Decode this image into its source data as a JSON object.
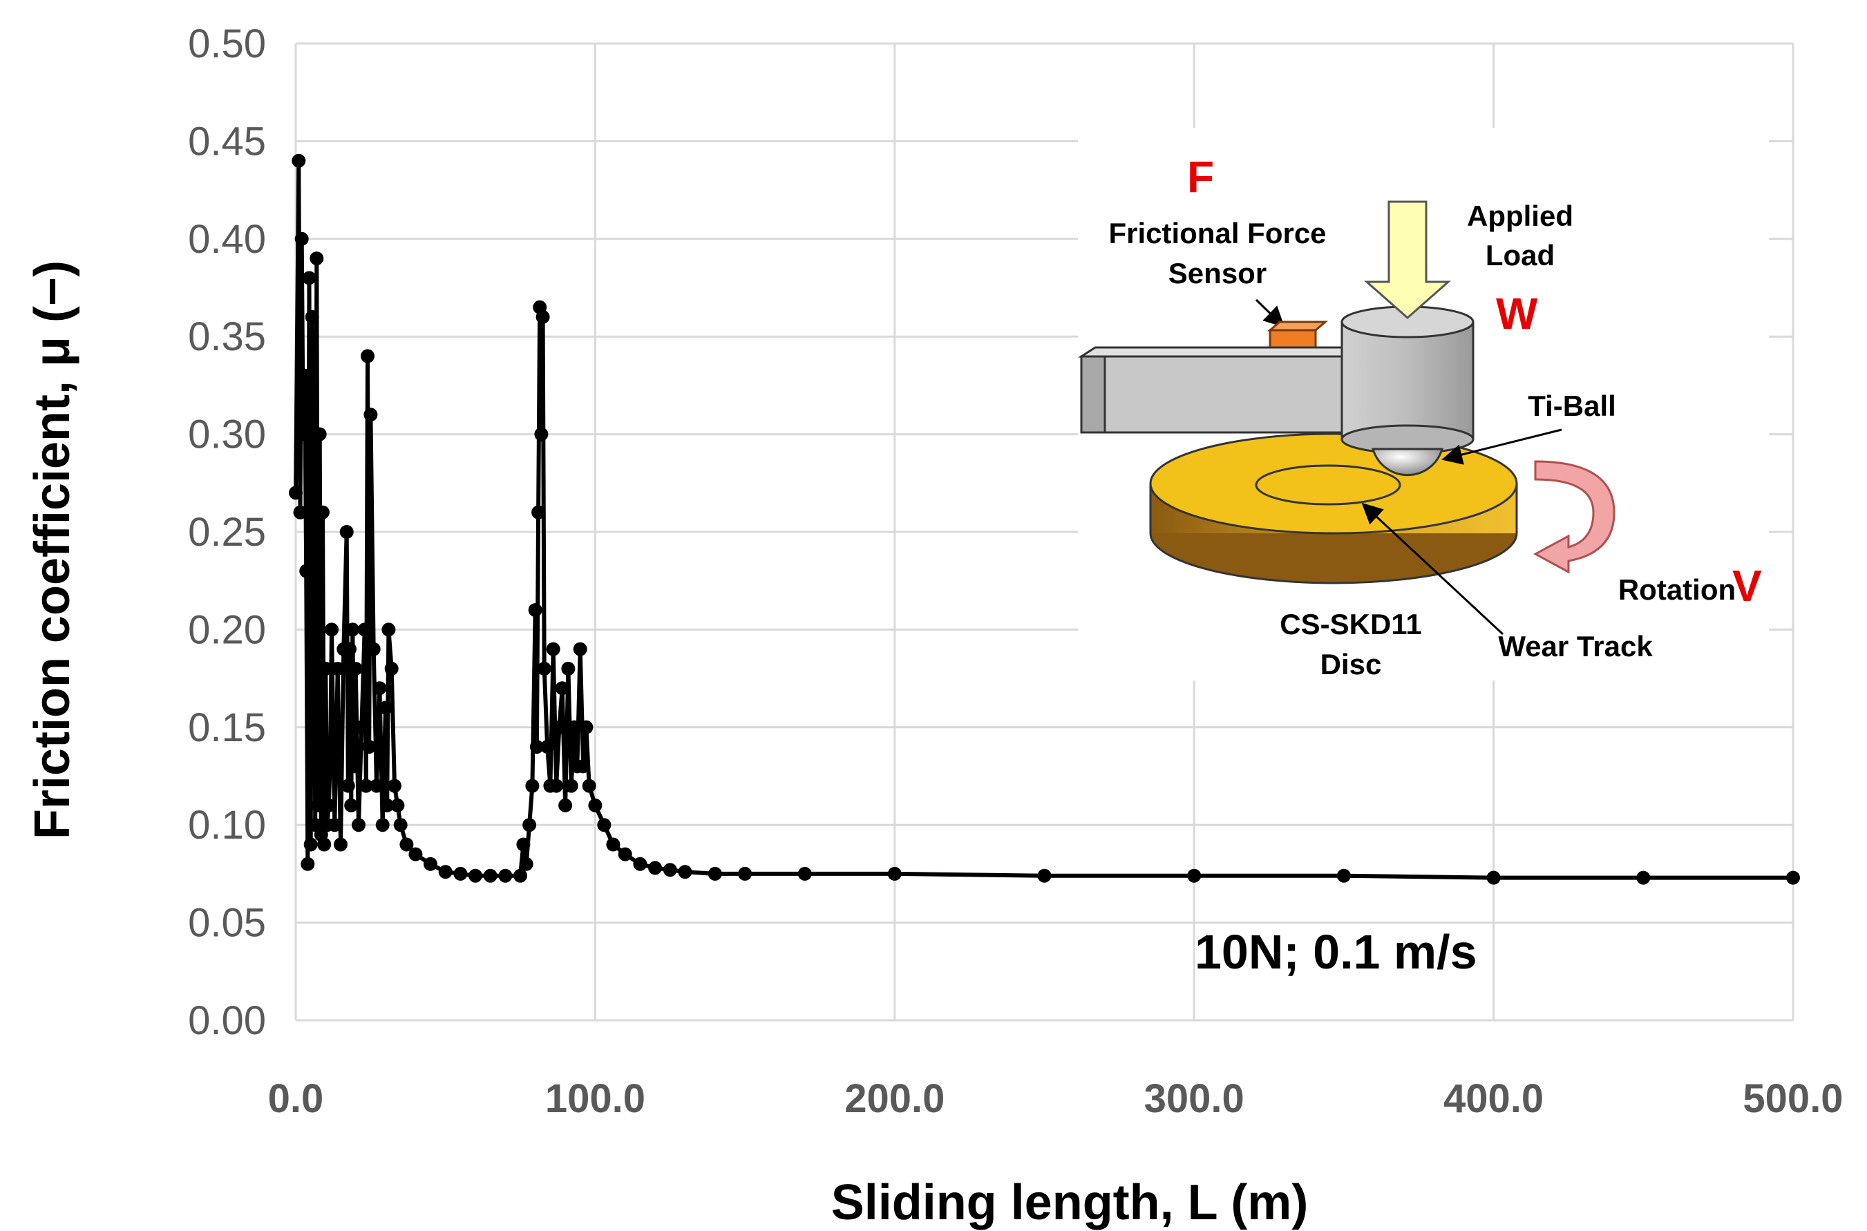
{
  "chart_data": {
    "type": "line",
    "title": "",
    "xlabel": "Sliding length, L (m)",
    "ylabel": "Friction coefficient, μ (−)",
    "xlim": [
      0,
      500
    ],
    "ylim": [
      0,
      0.5
    ],
    "x_ticks": [
      0,
      100,
      200,
      300,
      400,
      500
    ],
    "x_tick_labels": [
      "0.0",
      "100.0",
      "200.0",
      "300.0",
      "400.0",
      "500.0"
    ],
    "y_ticks": [
      0,
      0.05,
      0.1,
      0.15,
      0.2,
      0.25,
      0.3,
      0.35,
      0.4,
      0.45,
      0.5
    ],
    "y_tick_labels": [
      "0.00",
      "0.05",
      "0.10",
      "0.15",
      "0.20",
      "0.25",
      "0.30",
      "0.35",
      "0.40",
      "0.45",
      "0.50"
    ],
    "grid": true,
    "annotation": "10N; 0.1 m/s",
    "series": [
      {
        "name": "Friction coefficient",
        "marker": "circle",
        "color": "#000000",
        "x": [
          0,
          1,
          1.5,
          2,
          2.5,
          3,
          3.5,
          4,
          4.5,
          5,
          5.5,
          6,
          6.5,
          7,
          7.5,
          8,
          8.5,
          9,
          9.5,
          10,
          10.5,
          11,
          11.5,
          12,
          13,
          14,
          15,
          16,
          17,
          17.5,
          18,
          18.5,
          19,
          19.5,
          20,
          21,
          22,
          23,
          23.5,
          24,
          24.5,
          25,
          26,
          27,
          28,
          29,
          30,
          30.5,
          31,
          32,
          33,
          34,
          35,
          37,
          40,
          45,
          50,
          55,
          60,
          65,
          70,
          75,
          76,
          77,
          78,
          79,
          80,
          80.5,
          81,
          81.5,
          82,
          82.5,
          83,
          84,
          85,
          86,
          87,
          88,
          89,
          90,
          91,
          92,
          93,
          94,
          95,
          96,
          97,
          98,
          100,
          103,
          106,
          110,
          115,
          120,
          125,
          130,
          140,
          150,
          170,
          200,
          250,
          300,
          350,
          400,
          450,
          500
        ],
        "y": [
          0.27,
          0.44,
          0.26,
          0.4,
          0.3,
          0.33,
          0.23,
          0.08,
          0.38,
          0.09,
          0.36,
          0.28,
          0.1,
          0.39,
          0.11,
          0.3,
          0.095,
          0.26,
          0.09,
          0.18,
          0.1,
          0.11,
          0.13,
          0.2,
          0.1,
          0.18,
          0.09,
          0.19,
          0.25,
          0.12,
          0.19,
          0.11,
          0.2,
          0.13,
          0.18,
          0.1,
          0.15,
          0.2,
          0.12,
          0.34,
          0.14,
          0.31,
          0.19,
          0.12,
          0.17,
          0.1,
          0.16,
          0.11,
          0.2,
          0.18,
          0.12,
          0.11,
          0.1,
          0.09,
          0.085,
          0.08,
          0.076,
          0.075,
          0.074,
          0.074,
          0.074,
          0.074,
          0.09,
          0.08,
          0.1,
          0.12,
          0.21,
          0.14,
          0.26,
          0.365,
          0.3,
          0.36,
          0.18,
          0.14,
          0.12,
          0.19,
          0.12,
          0.15,
          0.17,
          0.11,
          0.18,
          0.12,
          0.15,
          0.13,
          0.19,
          0.13,
          0.15,
          0.12,
          0.11,
          0.1,
          0.09,
          0.085,
          0.08,
          0.078,
          0.077,
          0.076,
          0.075,
          0.075,
          0.075,
          0.075,
          0.074,
          0.074,
          0.074,
          0.073,
          0.073,
          0.073
        ]
      }
    ],
    "inset": {
      "force_symbol": "F",
      "load_symbol": "W",
      "velocity_symbol": "V",
      "sensor_label": [
        "Frictional Force",
        "Sensor"
      ],
      "load_label": [
        "Applied",
        "Load"
      ],
      "ball_label": "Ti-Ball",
      "rotation_label": "Rotation",
      "disc_label": [
        "CS-SKD11",
        "Disc"
      ],
      "track_label": "Wear Track",
      "colors": {
        "symbol": "#e60000",
        "disc": "#f2c21a",
        "arrow": "#ffffb3",
        "sensor": "#f07c24",
        "holder": "#c8c8c8",
        "rotation_arrow": "#f2a5a5"
      }
    }
  }
}
